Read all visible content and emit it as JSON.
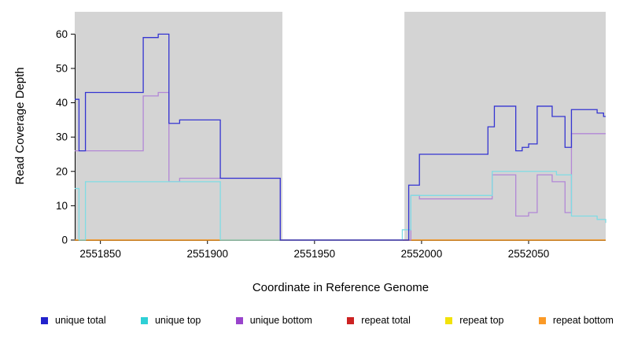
{
  "figure": {
    "background": "#ffffff",
    "axis_color": "#000000"
  },
  "chart_data": {
    "type": "line",
    "subtype": "step-coverage-plot",
    "title": "",
    "xlabel": "Coordinate in Reference Genome",
    "ylabel": "Read Coverage Depth",
    "xlim": [
      2551838,
      2552086
    ],
    "ylim": [
      0,
      66.5
    ],
    "x_ticks": [
      2551850,
      2551900,
      2551950,
      2552000,
      2552050
    ],
    "y_ticks": [
      0,
      10,
      20,
      30,
      40,
      50,
      60
    ],
    "grid": false,
    "legend_position": "bottom",
    "shaded_regions": [
      {
        "x0": 2551838,
        "x1": 2551935,
        "color": "#d4d4d4"
      },
      {
        "x0": 2551992,
        "x1": 2552086,
        "color": "#d4d4d4"
      }
    ],
    "series": [
      {
        "name": "unique total",
        "legend_color": "#2222cc",
        "line_color": "#3434d1",
        "steps": [
          [
            2551838,
            41
          ],
          [
            2551840,
            26
          ],
          [
            2551843,
            43
          ],
          [
            2551870,
            59
          ],
          [
            2551877,
            60
          ],
          [
            2551882,
            34
          ],
          [
            2551887,
            35
          ],
          [
            2551906,
            18
          ],
          [
            2551934,
            0
          ],
          [
            2551994,
            16
          ],
          [
            2551999,
            25
          ],
          [
            2552031,
            33
          ],
          [
            2552034,
            39
          ],
          [
            2552044,
            26
          ],
          [
            2552047,
            27
          ],
          [
            2552050,
            28
          ],
          [
            2552054,
            39
          ],
          [
            2552061,
            36
          ],
          [
            2552067,
            27
          ],
          [
            2552070,
            38
          ],
          [
            2552082,
            37
          ],
          [
            2552085,
            36
          ],
          [
            2552086,
            36
          ]
        ]
      },
      {
        "name": "unique top",
        "legend_color": "#2fd0d6",
        "line_color": "#7fdce4",
        "steps": [
          [
            2551838,
            15
          ],
          [
            2551840,
            0
          ],
          [
            2551843,
            17
          ],
          [
            2551906,
            0
          ],
          [
            2551991,
            3
          ],
          [
            2551995,
            13
          ],
          [
            2552033,
            20
          ],
          [
            2552063,
            19
          ],
          [
            2552070,
            7
          ],
          [
            2552082,
            6
          ],
          [
            2552086,
            5
          ]
        ]
      },
      {
        "name": "unique bottom",
        "legend_color": "#9944cc",
        "line_color": "#b287d6",
        "steps": [
          [
            2551838,
            26
          ],
          [
            2551870,
            42
          ],
          [
            2551877,
            43
          ],
          [
            2551882,
            17
          ],
          [
            2551887,
            18
          ],
          [
            2551934,
            0
          ],
          [
            2551995,
            13
          ],
          [
            2551999,
            12
          ],
          [
            2552033,
            19
          ],
          [
            2552044,
            7
          ],
          [
            2552050,
            8
          ],
          [
            2552054,
            19
          ],
          [
            2552061,
            17
          ],
          [
            2552067,
            8
          ],
          [
            2552070,
            31
          ],
          [
            2552086,
            31
          ]
        ]
      },
      {
        "name": "repeat total",
        "legend_color": "#cc2222",
        "line_color": "#cc2222",
        "steps": [
          [
            2551838,
            0
          ],
          [
            2552086,
            0
          ]
        ]
      },
      {
        "name": "repeat top",
        "legend_color": "#f2e20a",
        "line_color": "#f2e20a",
        "steps": [
          [
            2551838,
            0
          ],
          [
            2552086,
            0
          ]
        ]
      },
      {
        "name": "repeat bottom",
        "legend_color": "#fb9a27",
        "line_color": "#fb9a27",
        "steps": [
          [
            2551838,
            0
          ],
          [
            2552086,
            0
          ]
        ]
      }
    ]
  }
}
